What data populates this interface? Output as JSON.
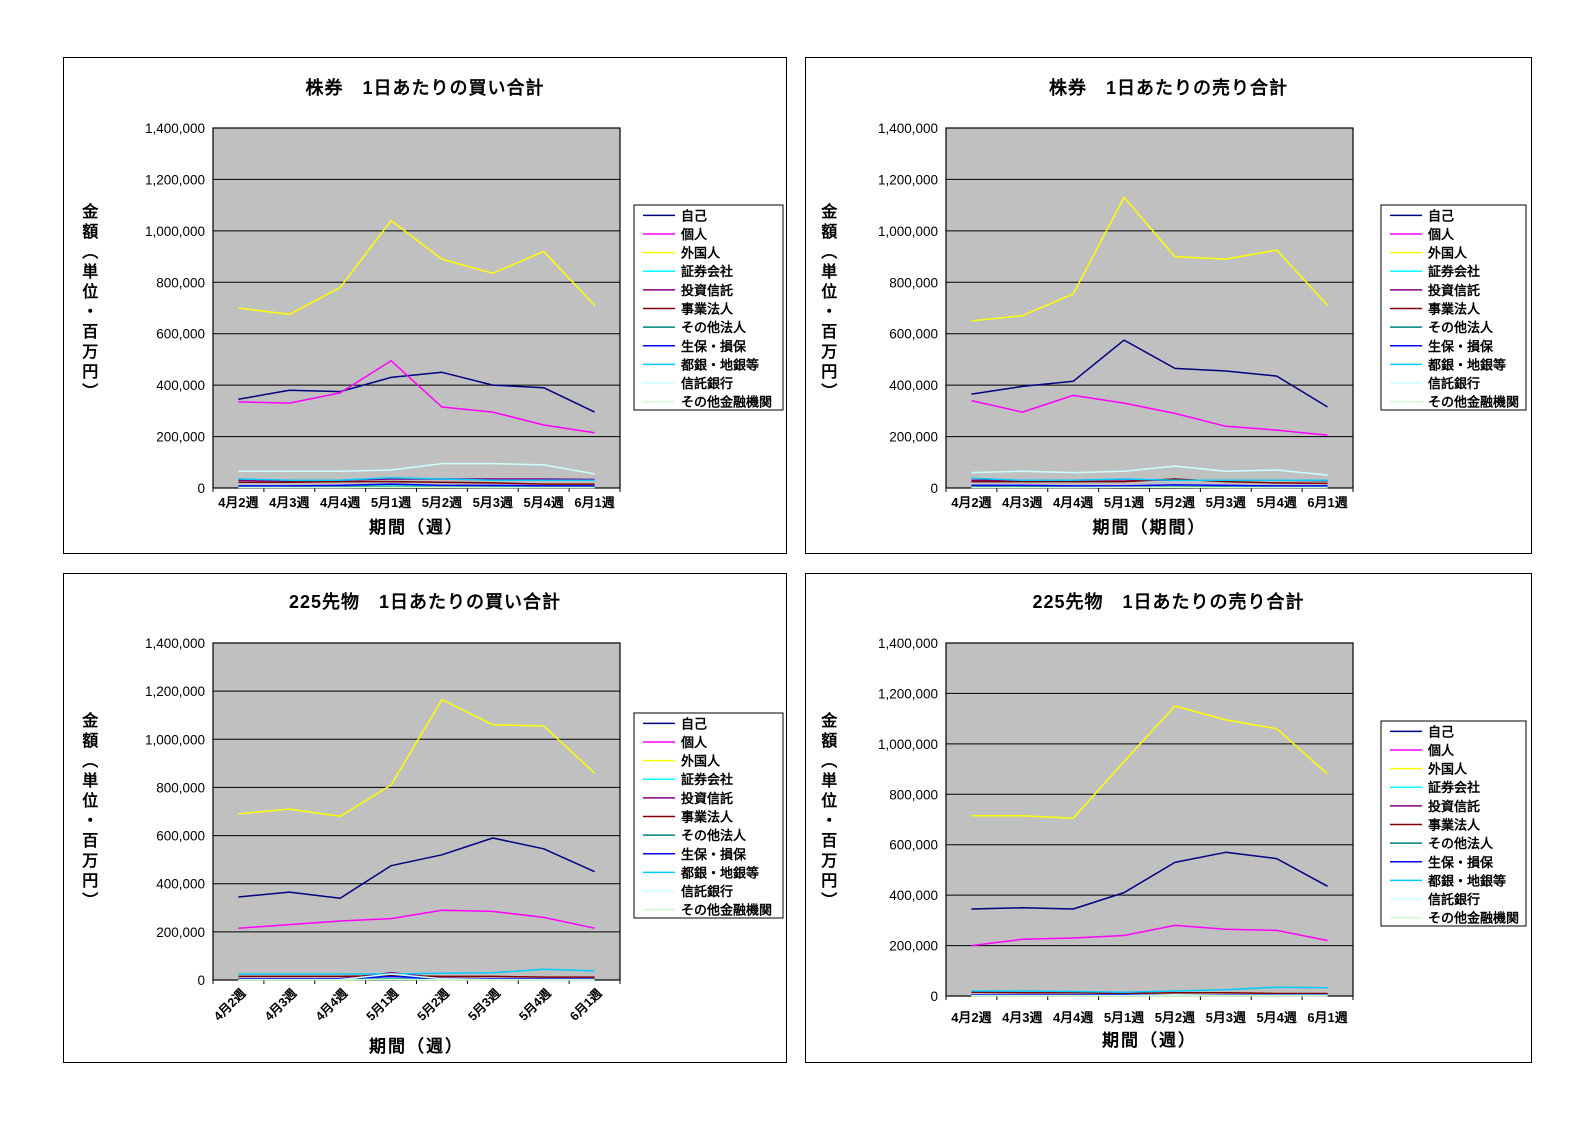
{
  "y_axis": {
    "title": "金額（単位・百万円）",
    "min": 0,
    "max": 1400000,
    "step": 200000,
    "tick_labels": [
      "0",
      "200,000",
      "400,000",
      "600,000",
      "800,000",
      "1,000,000",
      "1,200,000",
      "1,400,000"
    ]
  },
  "categories": [
    "4月2週",
    "4月3週",
    "4月4週",
    "5月1週",
    "5月2週",
    "5月3週",
    "5月4週",
    "6月1週"
  ],
  "colors": {
    "plot_bg": "#C0C0C0",
    "panel_bg": "#FFFFFF",
    "grid": "#000000",
    "text": "#000000"
  },
  "chart_data": [
    {
      "type": "line",
      "key": "stock-buy",
      "title": "株券　1日あたりの買い合計",
      "xlabel": "期間（週）",
      "ylabel": "金額（単位・百万円）",
      "ylim": [
        0,
        1400000
      ],
      "ytick_step": 200000,
      "grid": "horizontal",
      "legend_position": "right",
      "plot_bg": "#C0C0C0",
      "x_labels_rotated": false,
      "categories": [
        "4月2週",
        "4月3週",
        "4月4週",
        "5月1週",
        "5月2週",
        "5月3週",
        "5月4週",
        "6月1週"
      ],
      "series": [
        {
          "key": "jiko",
          "name": "自己",
          "color": "#000080",
          "values": [
            345000,
            380000,
            375000,
            430000,
            450000,
            400000,
            390000,
            295000
          ]
        },
        {
          "key": "kojin",
          "name": "個人",
          "color": "#FF00FF",
          "values": [
            335000,
            330000,
            370000,
            495000,
            315000,
            295000,
            245000,
            215000
          ]
        },
        {
          "key": "gaikokujin",
          "name": "外国人",
          "color": "#FFFF00",
          "values": [
            700000,
            675000,
            780000,
            1040000,
            890000,
            835000,
            920000,
            710000
          ]
        },
        {
          "key": "shoken-gaisha",
          "name": "証券会社",
          "color": "#00FFFF",
          "values": [
            5000,
            4000,
            5000,
            8000,
            6000,
            5000,
            5000,
            5000
          ]
        },
        {
          "key": "toshi-shintaku",
          "name": "投資信託",
          "color": "#800080",
          "values": [
            30000,
            28000,
            30000,
            35000,
            35000,
            35000,
            35000,
            33000
          ]
        },
        {
          "key": "jigyo-hojin",
          "name": "事業法人",
          "color": "#800000",
          "values": [
            22000,
            22000,
            25000,
            25000,
            22000,
            20000,
            15000,
            15000
          ]
        },
        {
          "key": "sonota-hojin",
          "name": "その他法人",
          "color": "#008080",
          "values": [
            5000,
            5000,
            5000,
            6000,
            5000,
            5000,
            4000,
            4000
          ]
        },
        {
          "key": "seiho-sonpo",
          "name": "生保・損保",
          "color": "#0000FF",
          "values": [
            8000,
            8000,
            10000,
            15000,
            10000,
            10000,
            8000,
            8000
          ]
        },
        {
          "key": "togin-chigin",
          "name": "都銀・地銀等",
          "color": "#00CCFF",
          "values": [
            35000,
            30000,
            30000,
            40000,
            35000,
            30000,
            30000,
            30000
          ]
        },
        {
          "key": "shintaku-ginko",
          "name": "信託銀行",
          "color": "#CCFFFF",
          "values": [
            65000,
            65000,
            65000,
            70000,
            95000,
            95000,
            90000,
            55000
          ]
        },
        {
          "key": "sonota-kinyu-kikan",
          "name": "その他金融機関",
          "color": "#CCFFCC",
          "values": [
            2000,
            2000,
            2000,
            3000,
            3000,
            2000,
            2000,
            2000
          ]
        }
      ]
    },
    {
      "type": "line",
      "key": "stock-sell",
      "title": "株券　1日あたりの売り合計",
      "xlabel": "期間（期間）",
      "ylabel": "金額（単位・百万円）",
      "ylim": [
        0,
        1400000
      ],
      "ytick_step": 200000,
      "grid": "horizontal",
      "legend_position": "right",
      "plot_bg": "#C0C0C0",
      "x_labels_rotated": false,
      "categories": [
        "4月2週",
        "4月3週",
        "4月4週",
        "5月1週",
        "5月2週",
        "5月3週",
        "5月4週",
        "6月1週"
      ],
      "series": [
        {
          "key": "jiko",
          "name": "自己",
          "color": "#000080",
          "values": [
            365000,
            395000,
            415000,
            575000,
            465000,
            455000,
            435000,
            315000
          ]
        },
        {
          "key": "kojin",
          "name": "個人",
          "color": "#FF00FF",
          "values": [
            340000,
            295000,
            360000,
            330000,
            290000,
            240000,
            225000,
            205000
          ]
        },
        {
          "key": "gaikokujin",
          "name": "外国人",
          "color": "#FFFF00",
          "values": [
            650000,
            670000,
            755000,
            1130000,
            900000,
            890000,
            925000,
            710000
          ]
        },
        {
          "key": "shoken-gaisha",
          "name": "証券会社",
          "color": "#00FFFF",
          "values": [
            5000,
            5000,
            5000,
            6000,
            5000,
            5000,
            5000,
            5000
          ]
        },
        {
          "key": "toshi-shintaku",
          "name": "投資信託",
          "color": "#800080",
          "values": [
            30000,
            30000,
            30000,
            32000,
            30000,
            30000,
            30000,
            28000
          ]
        },
        {
          "key": "jigyo-hojin",
          "name": "事業法人",
          "color": "#800000",
          "values": [
            25000,
            25000,
            25000,
            25000,
            35000,
            25000,
            20000,
            18000
          ]
        },
        {
          "key": "sonota-hojin",
          "name": "その他法人",
          "color": "#008080",
          "values": [
            5000,
            5000,
            5000,
            5000,
            5000,
            5000,
            4000,
            4000
          ]
        },
        {
          "key": "seiho-sonpo",
          "name": "生保・損保",
          "color": "#0000FF",
          "values": [
            10000,
            10000,
            8000,
            8000,
            12000,
            10000,
            8000,
            8000
          ]
        },
        {
          "key": "togin-chigin",
          "name": "都銀・地銀等",
          "color": "#00CCFF",
          "values": [
            38000,
            30000,
            30000,
            35000,
            30000,
            30000,
            30000,
            30000
          ]
        },
        {
          "key": "shintaku-ginko",
          "name": "信託銀行",
          "color": "#CCFFFF",
          "values": [
            60000,
            65000,
            60000,
            65000,
            85000,
            65000,
            70000,
            50000
          ]
        },
        {
          "key": "sonota-kinyu-kikan",
          "name": "その他金融機関",
          "color": "#CCFFCC",
          "values": [
            2000,
            2000,
            2000,
            3000,
            3000,
            2000,
            2000,
            2000
          ]
        }
      ]
    },
    {
      "type": "line",
      "key": "futures-buy",
      "title": "225先物　1日あたりの買い合計",
      "xlabel": "期間（週）",
      "ylabel": "金額（単位・百万円）",
      "ylim": [
        0,
        1400000
      ],
      "ytick_step": 200000,
      "grid": "horizontal",
      "legend_position": "right",
      "plot_bg": "#C0C0C0",
      "x_labels_rotated": true,
      "categories": [
        "4月2週",
        "4月3週",
        "4月4週",
        "5月1週",
        "5月2週",
        "5月3週",
        "5月4週",
        "6月1週"
      ],
      "series": [
        {
          "key": "jiko",
          "name": "自己",
          "color": "#000080",
          "values": [
            345000,
            365000,
            340000,
            475000,
            520000,
            590000,
            545000,
            450000
          ]
        },
        {
          "key": "kojin",
          "name": "個人",
          "color": "#FF00FF",
          "values": [
            215000,
            230000,
            245000,
            255000,
            290000,
            285000,
            260000,
            215000
          ]
        },
        {
          "key": "gaikokujin",
          "name": "外国人",
          "color": "#FFFF00",
          "values": [
            690000,
            710000,
            680000,
            810000,
            1165000,
            1060000,
            1055000,
            860000
          ]
        },
        {
          "key": "shoken-gaisha",
          "name": "証券会社",
          "color": "#00FFFF",
          "values": [
            3000,
            3000,
            3000,
            5000,
            3000,
            3000,
            3000,
            3000
          ]
        },
        {
          "key": "toshi-shintaku",
          "name": "投資信託",
          "color": "#800080",
          "values": [
            5000,
            5000,
            5000,
            30000,
            8000,
            5000,
            5000,
            5000
          ]
        },
        {
          "key": "jigyo-hojin",
          "name": "事業法人",
          "color": "#800000",
          "values": [
            15000,
            15000,
            15000,
            18000,
            15000,
            15000,
            12000,
            12000
          ]
        },
        {
          "key": "sonota-hojin",
          "name": "その他法人",
          "color": "#008080",
          "values": [
            3000,
            3000,
            3000,
            4000,
            3000,
            3000,
            3000,
            3000
          ]
        },
        {
          "key": "seiho-sonpo",
          "name": "生保・損保",
          "color": "#0000FF",
          "values": [
            5000,
            5000,
            5000,
            15000,
            5000,
            5000,
            5000,
            5000
          ]
        },
        {
          "key": "togin-chigin",
          "name": "都銀・地銀等",
          "color": "#00CCFF",
          "values": [
            25000,
            25000,
            25000,
            25000,
            28000,
            30000,
            45000,
            38000
          ]
        },
        {
          "key": "shintaku-ginko",
          "name": "信託銀行",
          "color": "#CCFFFF",
          "values": [
            2000,
            2000,
            2000,
            25000,
            5000,
            2000,
            2000,
            2000
          ]
        },
        {
          "key": "sonota-kinyu-kikan",
          "name": "その他金融機関",
          "color": "#CCFFCC",
          "values": [
            1000,
            1000,
            1000,
            2000,
            1000,
            1000,
            1000,
            1000
          ]
        }
      ]
    },
    {
      "type": "line",
      "key": "futures-sell",
      "title": "225先物　1日あたりの売り合計",
      "xlabel": "期間（週）",
      "ylabel": "金額（単位・百万円）",
      "ylim": [
        0,
        1400000
      ],
      "ytick_step": 200000,
      "grid": "horizontal",
      "legend_position": "right",
      "plot_bg": "#C0C0C0",
      "x_labels_rotated": false,
      "categories": [
        "4月2週",
        "4月3週",
        "4月4週",
        "5月1週",
        "5月2週",
        "5月3週",
        "5月4週",
        "6月1週"
      ],
      "series": [
        {
          "key": "jiko",
          "name": "自己",
          "color": "#000080",
          "values": [
            345000,
            350000,
            345000,
            410000,
            530000,
            570000,
            545000,
            435000
          ]
        },
        {
          "key": "kojin",
          "name": "個人",
          "color": "#FF00FF",
          "values": [
            200000,
            225000,
            230000,
            240000,
            280000,
            265000,
            260000,
            220000
          ]
        },
        {
          "key": "gaikokujin",
          "name": "外国人",
          "color": "#FFFF00",
          "values": [
            715000,
            715000,
            705000,
            930000,
            1150000,
            1095000,
            1060000,
            880000
          ]
        },
        {
          "key": "shoken-gaisha",
          "name": "証券会社",
          "color": "#00FFFF",
          "values": [
            3000,
            3000,
            3000,
            3000,
            3000,
            3000,
            3000,
            3000
          ]
        },
        {
          "key": "toshi-shintaku",
          "name": "投資信託",
          "color": "#800080",
          "values": [
            5000,
            5000,
            3000,
            5000,
            5000,
            5000,
            5000,
            5000
          ]
        },
        {
          "key": "jigyo-hojin",
          "name": "事業法人",
          "color": "#800000",
          "values": [
            15000,
            13000,
            13000,
            10000,
            13000,
            13000,
            10000,
            10000
          ]
        },
        {
          "key": "sonota-hojin",
          "name": "その他法人",
          "color": "#008080",
          "values": [
            3000,
            3000,
            3000,
            3000,
            3000,
            3000,
            3000,
            3000
          ]
        },
        {
          "key": "seiho-sonpo",
          "name": "生保・損保",
          "color": "#0000FF",
          "values": [
            5000,
            5000,
            5000,
            5000,
            5000,
            5000,
            5000,
            5000
          ]
        },
        {
          "key": "togin-chigin",
          "name": "都銀・地銀等",
          "color": "#00CCFF",
          "values": [
            20000,
            20000,
            18000,
            15000,
            20000,
            25000,
            35000,
            33000
          ]
        },
        {
          "key": "shintaku-ginko",
          "name": "信託銀行",
          "color": "#CCFFFF",
          "values": [
            2000,
            2000,
            2000,
            2000,
            5000,
            3000,
            3000,
            3000
          ]
        },
        {
          "key": "sonota-kinyu-kikan",
          "name": "その他金融機関",
          "color": "#CCFFCC",
          "values": [
            1000,
            1000,
            1000,
            1000,
            1000,
            1000,
            1000,
            1000
          ]
        }
      ]
    }
  ]
}
